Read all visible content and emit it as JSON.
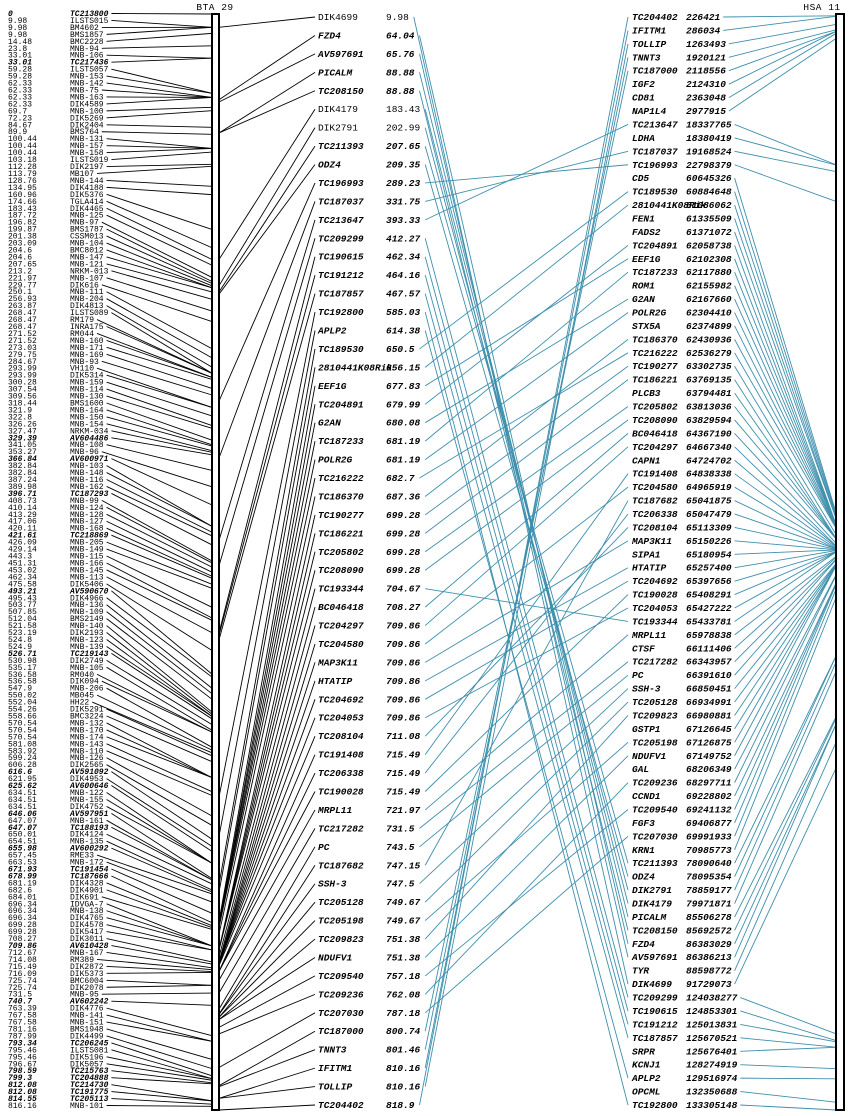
{
  "figure": {
    "colors": {
      "line_black": "#000000",
      "line_teal": "#3d8fad",
      "bar_fill": "#ffffff",
      "bar_stroke": "#000000",
      "text": "#000000"
    },
    "bta": {
      "label": "BTA 29",
      "scale_max": 818.9,
      "markers": [
        [
          "0",
          "TC213800"
        ],
        [
          "9.98",
          "ILSTS015"
        ],
        [
          "9.98",
          "BM4602"
        ],
        [
          "9.98",
          "BMS1857"
        ],
        [
          "14.48",
          "BMC2228"
        ],
        [
          "23.8",
          "MNB-94"
        ],
        [
          "33.01",
          "MNB-106"
        ],
        [
          "33.01",
          "TC217436"
        ],
        [
          "59.28",
          "ILSTS057"
        ],
        [
          "59.28",
          "MNB-153"
        ],
        [
          "62.33",
          "MNB-142"
        ],
        [
          "62.33",
          "MNB-75"
        ],
        [
          "62.33",
          "MNB-163"
        ],
        [
          "62.33",
          "DIK4589"
        ],
        [
          "69.7",
          "MNB-100"
        ],
        [
          "72.23",
          "DIK5269"
        ],
        [
          "84.67",
          "DIK2404"
        ],
        [
          "89.9",
          "BMS764"
        ],
        [
          "100.44",
          "MNB-131"
        ],
        [
          "100.44",
          "MNB-157"
        ],
        [
          "100.44",
          "MNB-158"
        ],
        [
          "103.18",
          "ILSTS019"
        ],
        [
          "112.28",
          "DIK2197"
        ],
        [
          "113.79",
          "MB107"
        ],
        [
          "128.76",
          "MNB-144"
        ],
        [
          "134.95",
          "DIK4188"
        ],
        [
          "160.96",
          "DIK5376"
        ],
        [
          "174.66",
          "TGLA414"
        ],
        [
          "183.43",
          "DIK4465"
        ],
        [
          "187.72",
          "MNB-125"
        ],
        [
          "196.82",
          "MNB-97"
        ],
        [
          "199.87",
          "BMS1787"
        ],
        [
          "201.38",
          "CSSM013"
        ],
        [
          "203.09",
          "MNB-104"
        ],
        [
          "204.6",
          "BMC8012"
        ],
        [
          "204.6",
          "MNB-147"
        ],
        [
          "207.65",
          "MNB-121"
        ],
        [
          "213.2",
          "NRKM-013"
        ],
        [
          "221.97",
          "MNB-107"
        ],
        [
          "229.77",
          "DIK616"
        ],
        [
          "250.1",
          "MNB-111"
        ],
        [
          "256.93",
          "MNB-204"
        ],
        [
          "263.87",
          "DIK4813"
        ],
        [
          "268.47",
          "ILSTS089"
        ],
        [
          "268.47",
          "RM179"
        ],
        [
          "268.47",
          "INRA175"
        ],
        [
          "271.52",
          "RM044"
        ],
        [
          "271.52",
          "MNB-160"
        ],
        [
          "273.03",
          "MNB-171"
        ],
        [
          "279.75",
          "MNB-169"
        ],
        [
          "284.67",
          "MNB-93"
        ],
        [
          "293.99",
          "VH110"
        ],
        [
          "293.99",
          "DIK5314"
        ],
        [
          "300.28",
          "MNB-159"
        ],
        [
          "307.54",
          "MNB-114"
        ],
        [
          "309.56",
          "MNB-130"
        ],
        [
          "318.44",
          "BMS1600"
        ],
        [
          "321.9",
          "MNB-164"
        ],
        [
          "322.8",
          "MNB-150"
        ],
        [
          "326.26",
          "MNB-154"
        ],
        [
          "327.47",
          "NRKM-034"
        ],
        [
          "329.39",
          "AV604486"
        ],
        [
          "341.05",
          "MNB-108"
        ],
        [
          "353.27",
          "MNB-96"
        ],
        [
          "366.84",
          "AV600971"
        ],
        [
          "382.84",
          "MNB-103"
        ],
        [
          "382.84",
          "MNB-148"
        ],
        [
          "387.24",
          "MNB-116"
        ],
        [
          "389.98",
          "MNB-162"
        ],
        [
          "396.71",
          "TC187293"
        ],
        [
          "408.73",
          "MNB-99"
        ],
        [
          "410.14",
          "MNB-124"
        ],
        [
          "413.29",
          "MNB-128"
        ],
        [
          "417.06",
          "MNB-127"
        ],
        [
          "420.11",
          "MNB-168"
        ],
        [
          "421.61",
          "TC218869"
        ],
        [
          "426.09",
          "MNB-205"
        ],
        [
          "429.14",
          "MNB-149"
        ],
        [
          "443.3",
          "MNB-115"
        ],
        [
          "451.31",
          "MNB-166"
        ],
        [
          "453.02",
          "MNB-145"
        ],
        [
          "462.34",
          "MNB-113"
        ],
        [
          "475.58",
          "DIK5406"
        ],
        [
          "493.21",
          "AV590670"
        ],
        [
          "495.43",
          "DIK4966"
        ],
        [
          "503.77",
          "MNB-136"
        ],
        [
          "507.85",
          "MNB-109"
        ],
        [
          "512.04",
          "BMS2149"
        ],
        [
          "521.58",
          "MNB-140"
        ],
        [
          "523.19",
          "DIK2193"
        ],
        [
          "524.8",
          "MNB-123"
        ],
        [
          "524.9",
          "MNB-139"
        ],
        [
          "526.71",
          "TC219143"
        ],
        [
          "530.98",
          "DIK2749"
        ],
        [
          "535.17",
          "MNB-105"
        ],
        [
          "536.58",
          "RM040"
        ],
        [
          "536.58",
          "DIK094"
        ],
        [
          "547.9",
          "MNB-206"
        ],
        [
          "550.02",
          "MB045"
        ],
        [
          "552.04",
          "HH22"
        ],
        [
          "554.26",
          "DIK5291"
        ],
        [
          "558.66",
          "BMC3224"
        ],
        [
          "570.54",
          "MNB-132"
        ],
        [
          "570.54",
          "MNB-170"
        ],
        [
          "570.54",
          "MNB-174"
        ],
        [
          "581.08",
          "MNB-143"
        ],
        [
          "583.92",
          "MNB-110"
        ],
        [
          "599.24",
          "MNB-126"
        ],
        [
          "606.28",
          "DIK2565"
        ],
        [
          "616.6",
          "AV591092"
        ],
        [
          "621.95",
          "DIK4953"
        ],
        [
          "625.62",
          "AV600646"
        ],
        [
          "634.51",
          "MNB-122"
        ],
        [
          "634.51",
          "MNB-155"
        ],
        [
          "634.51",
          "DIK4752"
        ],
        [
          "646.06",
          "AV597951"
        ],
        [
          "647.07",
          "MNB-161"
        ],
        [
          "647.07",
          "TC188193"
        ],
        [
          "650.01",
          "DIK4124"
        ],
        [
          "654.51",
          "MNB-135"
        ],
        [
          "655.98",
          "AV600292"
        ],
        [
          "657.45",
          "RME33"
        ],
        [
          "663.53",
          "MNB-172"
        ],
        [
          "671.93",
          "TC191454"
        ],
        [
          "678.99",
          "TC187666"
        ],
        [
          "681.19",
          "DIK4328"
        ],
        [
          "682.6",
          "DIK4901"
        ],
        [
          "684.01",
          "DIK691"
        ],
        [
          "696.34",
          "IDVGA-7"
        ],
        [
          "696.34",
          "MNB-138"
        ],
        [
          "696.34",
          "DIK4765"
        ],
        [
          "699.28",
          "DIK4578"
        ],
        [
          "699.28",
          "DIK5417"
        ],
        [
          "708.27",
          "DIK3011"
        ],
        [
          "709.86",
          "AV610428"
        ],
        [
          "712.67",
          "MNB-167"
        ],
        [
          "714.08",
          "RM389"
        ],
        [
          "715.49",
          "DIK2872"
        ],
        [
          "716.09",
          "DIK5373"
        ],
        [
          "725.74",
          "BMC6004"
        ],
        [
          "725.74",
          "DIK2078"
        ],
        [
          "731.5",
          "MNB-95"
        ],
        [
          "740.7",
          "AV602242"
        ],
        [
          "763.39",
          "DIK4776"
        ],
        [
          "767.58",
          "MNB-141"
        ],
        [
          "767.58",
          "MNB-151"
        ],
        [
          "781.16",
          "BMS1948"
        ],
        [
          "787.99",
          "DIK4499"
        ],
        [
          "793.34",
          "TC206245"
        ],
        [
          "795.46",
          "ILSTS081"
        ],
        [
          "795.46",
          "DIK5196"
        ],
        [
          "796.67",
          "DIK5057"
        ],
        [
          "798.59",
          "TC215763"
        ],
        [
          "799.3",
          "TC204888"
        ],
        [
          "812.08",
          "TC214730"
        ],
        [
          "812.08",
          "TC191775"
        ],
        [
          "814.55",
          "TC205113"
        ],
        [
          "816.16",
          "MNB-101"
        ]
      ],
      "genes": [
        [
          "DIK4699",
          "9.98"
        ],
        [
          "FZD4",
          "64.04"
        ],
        [
          "AV597691",
          "65.76"
        ],
        [
          "PICALM",
          "88.88"
        ],
        [
          "TC208150",
          "88.88"
        ],
        [
          "DIK4179",
          "183.43"
        ],
        [
          "DIK2791",
          "202.99"
        ],
        [
          "TC211393",
          "207.65"
        ],
        [
          "ODZ4",
          "209.35"
        ],
        [
          "TC196993",
          "289.23"
        ],
        [
          "TC187037",
          "331.75"
        ],
        [
          "TC213647",
          "393.33"
        ],
        [
          "TC209299",
          "412.27"
        ],
        [
          "TC190615",
          "462.34"
        ],
        [
          "TC191212",
          "464.16"
        ],
        [
          "TC187857",
          "467.57"
        ],
        [
          "TC192800",
          "585.03"
        ],
        [
          "APLP2",
          "614.38"
        ],
        [
          "TC189530",
          "650.5"
        ],
        [
          "2810441K08Rik",
          "656.15"
        ],
        [
          "EEF1G",
          "677.83"
        ],
        [
          "TC204891",
          "679.99"
        ],
        [
          "G2AN",
          "680.08"
        ],
        [
          "TC187233",
          "681.19"
        ],
        [
          "POLR2G",
          "681.19"
        ],
        [
          "TC216222",
          "682.7"
        ],
        [
          "TC186370",
          "687.36"
        ],
        [
          "TC190277",
          "699.28"
        ],
        [
          "TC186221",
          "699.28"
        ],
        [
          "TC205802",
          "699.28"
        ],
        [
          "TC208090",
          "699.28"
        ],
        [
          "TC193344",
          "704.67"
        ],
        [
          "BC046418",
          "708.27"
        ],
        [
          "TC204297",
          "709.86"
        ],
        [
          "TC204580",
          "709.86"
        ],
        [
          "MAP3K11",
          "709.86"
        ],
        [
          "HTATIP",
          "709.86"
        ],
        [
          "TC204692",
          "709.86"
        ],
        [
          "TC204053",
          "709.86"
        ],
        [
          "TC208104",
          "711.08"
        ],
        [
          "TC191408",
          "715.49"
        ],
        [
          "TC206338",
          "715.49"
        ],
        [
          "TC190028",
          "715.49"
        ],
        [
          "MRPL11",
          "721.97"
        ],
        [
          "TC217282",
          "731.5"
        ],
        [
          "PC",
          "743.5"
        ],
        [
          "TC187682",
          "747.15"
        ],
        [
          "SSH-3",
          "747.5"
        ],
        [
          "TC205128",
          "749.67"
        ],
        [
          "TC205198",
          "749.67"
        ],
        [
          "TC209823",
          "751.38"
        ],
        [
          "NDUFV1",
          "751.38"
        ],
        [
          "TC209540",
          "757.18"
        ],
        [
          "TC209236",
          "762.08"
        ],
        [
          "TC207030",
          "787.18"
        ],
        [
          "TC187000",
          "800.74"
        ],
        [
          "TNNT3",
          "801.46"
        ],
        [
          "IFITM1",
          "810.16"
        ],
        [
          "TOLLIP",
          "810.16"
        ],
        [
          "TC204402",
          "818.9"
        ]
      ]
    },
    "hsa": {
      "label": "HSA 11",
      "scale_max_bp": 133305148,
      "genes": [
        [
          "TC204402",
          "226421"
        ],
        [
          "IFITM1",
          "286034"
        ],
        [
          "TOLLIP",
          "1263493"
        ],
        [
          "TNNT3",
          "1920121"
        ],
        [
          "TC187000",
          "2118556"
        ],
        [
          "IGF2",
          "2124310"
        ],
        [
          "CD81",
          "2363048"
        ],
        [
          "NAP1L4",
          "2977915"
        ],
        [
          "TC213647",
          "18337765"
        ],
        [
          "LDHA",
          "18380419"
        ],
        [
          "TC187037",
          "19168524"
        ],
        [
          "TC196993",
          "22798379"
        ],
        [
          "CD5",
          "60645326"
        ],
        [
          "TC189530",
          "60884648"
        ],
        [
          "2810441K08Rik",
          "61086062"
        ],
        [
          "FEN1",
          "61335509"
        ],
        [
          "FADS2",
          "61371072"
        ],
        [
          "TC204891",
          "62058738"
        ],
        [
          "EEF1G",
          "62102308"
        ],
        [
          "TC187233",
          "62117880"
        ],
        [
          "ROM1",
          "62155982"
        ],
        [
          "G2AN",
          "62167660"
        ],
        [
          "POLR2G",
          "62304410"
        ],
        [
          "STX5A",
          "62374899"
        ],
        [
          "TC186370",
          "62430936"
        ],
        [
          "TC216222",
          "62536279"
        ],
        [
          "TC190277",
          "63302735"
        ],
        [
          "TC186221",
          "63769135"
        ],
        [
          "PLCB3",
          "63794481"
        ],
        [
          "TC205802",
          "63813036"
        ],
        [
          "TC208090",
          "63829594"
        ],
        [
          "BC046418",
          "64367190"
        ],
        [
          "TC204297",
          "64667340"
        ],
        [
          "CAPN1",
          "64724702"
        ],
        [
          "TC191408",
          "64838338"
        ],
        [
          "TC204580",
          "64965919"
        ],
        [
          "TC187682",
          "65041875"
        ],
        [
          "TC206338",
          "65047479"
        ],
        [
          "TC208104",
          "65113309"
        ],
        [
          "MAP3K11",
          "65150226"
        ],
        [
          "SIPA1",
          "65180954"
        ],
        [
          "HTATIP",
          "65257400"
        ],
        [
          "TC204692",
          "65397656"
        ],
        [
          "TC190028",
          "65408291"
        ],
        [
          "TC204053",
          "65427222"
        ],
        [
          "TC193344",
          "65433781"
        ],
        [
          "MRPL11",
          "65978838"
        ],
        [
          "CTSF",
          "66111406"
        ],
        [
          "TC217282",
          "66343957"
        ],
        [
          "PC",
          "66391610"
        ],
        [
          "SSH-3",
          "66850451"
        ],
        [
          "TC205128",
          "66934991"
        ],
        [
          "TC209823",
          "66980881"
        ],
        [
          "GSTP1",
          "67126645"
        ],
        [
          "TC205198",
          "67126875"
        ],
        [
          "NDUFV1",
          "67149752"
        ],
        [
          "GAL",
          "68206349"
        ],
        [
          "TC209236",
          "68297711"
        ],
        [
          "CCND1",
          "69228802"
        ],
        [
          "TC209540",
          "69241132"
        ],
        [
          "FGF3",
          "69406877"
        ],
        [
          "TC207030",
          "69991933"
        ],
        [
          "KRN1",
          "70985773"
        ],
        [
          "TC211393",
          "78090640"
        ],
        [
          "ODZ4",
          "78095354"
        ],
        [
          "DIK2791",
          "78859177"
        ],
        [
          "DIK4179",
          "79971871"
        ],
        [
          "PICALM",
          "85506278"
        ],
        [
          "TC208150",
          "85692572"
        ],
        [
          "FZD4",
          "86383029"
        ],
        [
          "AV597691",
          "86386213"
        ],
        [
          "TYR",
          "88598772"
        ],
        [
          "DIK4699",
          "91729073"
        ],
        [
          "TC209299",
          "124038277"
        ],
        [
          "TC190615",
          "124853301"
        ],
        [
          "TC191212",
          "125013831"
        ],
        [
          "TC187857",
          "125670521"
        ],
        [
          "SRPR",
          "125676401"
        ],
        [
          "KCNJ1",
          "128274919"
        ],
        [
          "APLP2",
          "129516974"
        ],
        [
          "OPCML",
          "132350688"
        ],
        [
          "TC192800",
          "133305148"
        ]
      ]
    }
  }
}
